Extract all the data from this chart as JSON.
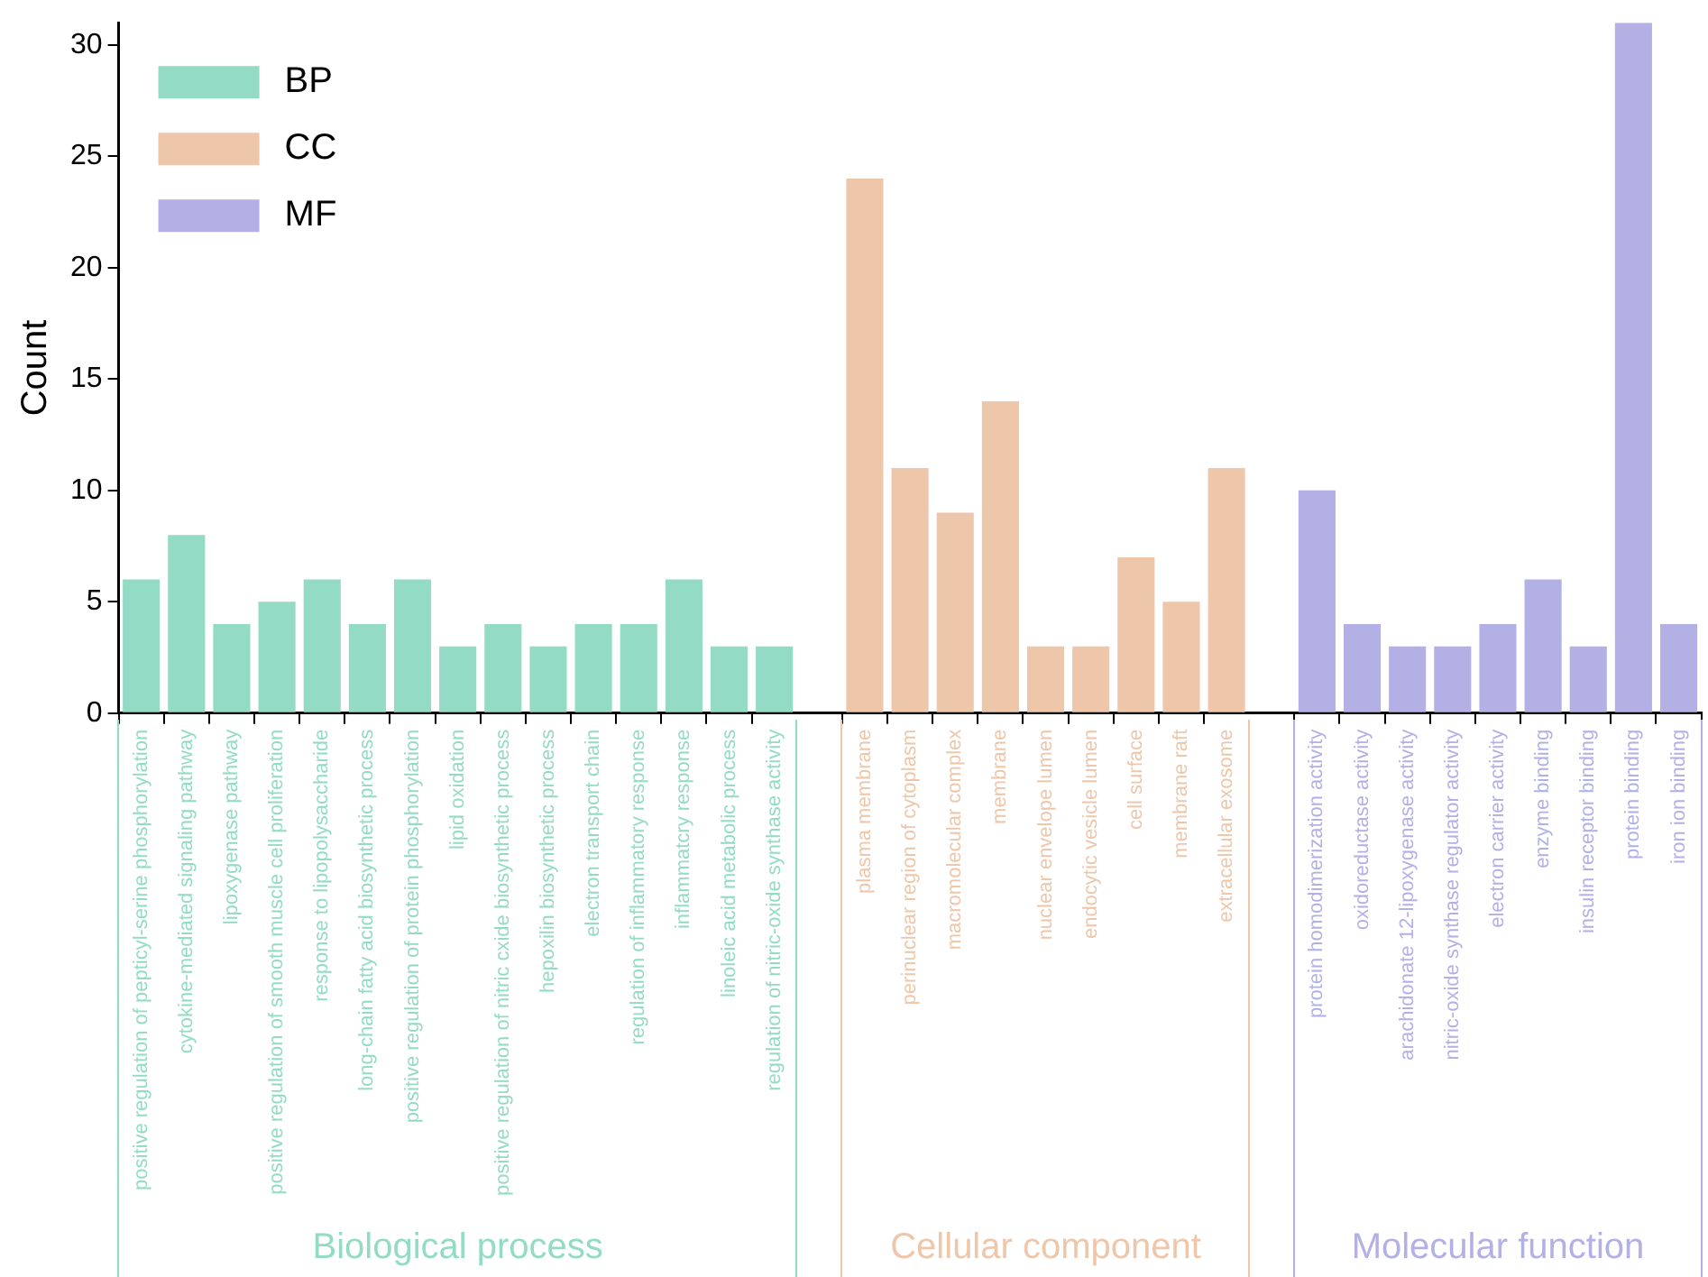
{
  "chart_data": {
    "type": "bar",
    "ylabel": "Count",
    "categories": [
      "positive regulation of pepticyl-serine phosphorylation",
      "cytokine-mediated signaling pathway",
      "lipoxygenase pathway",
      "positive regulation of smooth muscle cell proliferation",
      "response to lipopolysaccharide",
      "long-chain fatty acid biosynthetic process",
      "positive regulation of protein phosphorylation",
      "lipid oxidation",
      "positive regulation of nitric cxide biosynthetic process",
      "hepoxilin biosynthetic process",
      "electron transport chain",
      "regulation of inflammatory response",
      "inflammatcry response",
      "linoleic acid metabolic process",
      "regulation of nitric-oxide synthase activity",
      null,
      "plasma membrane",
      "perinuclear region of cytoplasm",
      "macromolecular complex",
      "membrane",
      "nuclear envelope lumen",
      "endocytic vesicle lumen",
      "cell surface",
      "membrane raft",
      "extracellular exosome",
      null,
      "protein homodimerization activity",
      "oxidoreductase activity",
      "arachidonate 12-lipoxygenase activity",
      "nitric-oxide synthase regulator activity",
      "electron carrier activity",
      "enzyme binding",
      "insulin receptor binding",
      "protein binding",
      "iron ion binding"
    ],
    "series": [
      {
        "name": "BP",
        "color": "#93dbc4",
        "values": [
          6,
          8,
          4,
          5,
          6,
          4,
          6,
          3,
          4,
          3,
          4,
          4,
          6,
          3,
          3,
          null,
          null,
          null,
          null,
          null,
          null,
          null,
          null,
          null,
          null,
          null,
          null,
          null,
          null,
          null,
          null,
          null,
          null,
          null,
          null
        ]
      },
      {
        "name": "CC",
        "color": "#eec6aa",
        "values": [
          null,
          null,
          null,
          null,
          null,
          null,
          null,
          null,
          null,
          null,
          null,
          null,
          null,
          null,
          null,
          null,
          24,
          11,
          9,
          14,
          3,
          3,
          7,
          5,
          11,
          null,
          null,
          null,
          null,
          null,
          null,
          null,
          null,
          null,
          null
        ]
      },
      {
        "name": "MF",
        "color": "#b3b0e6",
        "values": [
          null,
          null,
          null,
          null,
          null,
          null,
          null,
          null,
          null,
          null,
          null,
          null,
          null,
          null,
          null,
          null,
          null,
          null,
          null,
          null,
          null,
          null,
          null,
          null,
          null,
          null,
          10,
          4,
          3,
          3,
          4,
          6,
          3,
          31,
          4
        ]
      }
    ],
    "annotations": [
      "Biological process",
      "Cellular component",
      "Molecular function"
    ],
    "ylim": [
      0,
      31
    ],
    "yticks": [
      0,
      5,
      10,
      15,
      20,
      25,
      30
    ],
    "grid": false,
    "legend": "top left"
  }
}
